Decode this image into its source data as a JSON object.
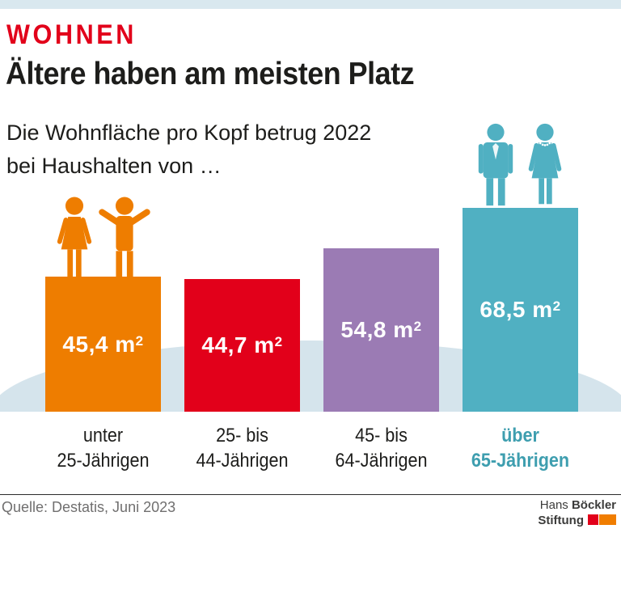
{
  "header": {
    "kicker": "WOHNEN",
    "title": "Ältere haben am meisten Platz",
    "subtitle_line1": "Die Wohnfläche pro Kopf betrug 2022",
    "subtitle_line2": "bei Haushalten von …"
  },
  "chart_data": {
    "type": "bar",
    "title": "Ältere haben am meisten Platz",
    "subtitle": "Die Wohnfläche pro Kopf betrug 2022 bei Haushalten von …",
    "unit": "m²",
    "unit_base": "m",
    "unit_exponent": "2",
    "categories": [
      "unter 25-Jährigen",
      "25- bis 44-Jährigen",
      "45- bis 64-Jährigen",
      "über 65-Jährigen"
    ],
    "category_lines": [
      [
        "unter",
        "25-Jährigen"
      ],
      [
        "25- bis",
        "44-Jährigen"
      ],
      [
        "45- bis",
        "64-Jährigen"
      ],
      [
        "über",
        "65-Jährigen"
      ]
    ],
    "values": [
      45.4,
      44.7,
      54.8,
      68.5
    ],
    "value_labels": [
      "45,4",
      "44,7",
      "54,8",
      "68,5"
    ],
    "bar_colors": [
      "#ee7d00",
      "#e2001a",
      "#9b7bb4",
      "#50b0c2"
    ],
    "highlight_index": 3,
    "highlight_label_color": "#3e9eaf",
    "ylim": [
      0,
      68.5
    ],
    "grid": false,
    "legend": false
  },
  "decor": {
    "topbar_color": "#d9e8ef",
    "ellipse_color": "#d5e4ec",
    "kicker_color": "#e2001a"
  },
  "footer": {
    "source": "Quelle: Destatis, Juni 2023",
    "logo": {
      "line1_regular": "Hans",
      "line1_bold": "Böckler",
      "line2_bold": "Stiftung",
      "mark_red": "#e2001a",
      "mark_orange": "#f07d00"
    }
  }
}
